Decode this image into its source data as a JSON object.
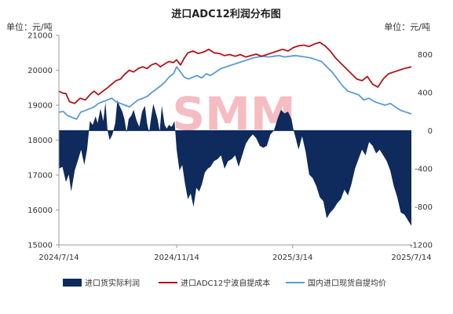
{
  "chart_data": {
    "type": "line",
    "title": "进口ADC12利润分布图",
    "left_unit": "单位：元/吨",
    "right_unit": "单位：元/吨",
    "watermark": "SMM",
    "left_axis": {
      "min": 15000,
      "max": 21000,
      "ticks": [
        15000,
        16000,
        17000,
        18000,
        19000,
        20000,
        21000
      ]
    },
    "right_axis": {
      "min": -1200,
      "max": 1000,
      "ticks": [
        -1200,
        -800,
        -400,
        0,
        400,
        800
      ]
    },
    "x_axis": {
      "start": "2024/7/14",
      "end": "2025/7/14",
      "tick_labels": [
        "2024/7/14",
        "2024/11/14",
        "2025/3/14",
        "2025/7/14"
      ],
      "tick_positions": [
        0,
        0.3342,
        0.663,
        1.0
      ]
    },
    "colors": {
      "profit": "#0f2a5c",
      "cost": "#b0141c",
      "price": "#5a9bd5"
    },
    "series": [
      {
        "name": "进口货实际利润",
        "axis": "right",
        "kind": "area",
        "points": [
          [
            0.0,
            -400
          ],
          [
            0.01,
            -380
          ],
          [
            0.02,
            -540
          ],
          [
            0.028,
            -460
          ],
          [
            0.035,
            -640
          ],
          [
            0.045,
            -420
          ],
          [
            0.055,
            -300
          ],
          [
            0.063,
            -200
          ],
          [
            0.072,
            -360
          ],
          [
            0.08,
            -200
          ],
          [
            0.088,
            100
          ],
          [
            0.096,
            60
          ],
          [
            0.104,
            150
          ],
          [
            0.11,
            80
          ],
          [
            0.118,
            230
          ],
          [
            0.126,
            100
          ],
          [
            0.132,
            300
          ],
          [
            0.138,
            0
          ],
          [
            0.144,
            -100
          ],
          [
            0.152,
            -40
          ],
          [
            0.16,
            80
          ],
          [
            0.166,
            320
          ],
          [
            0.172,
            260
          ],
          [
            0.18,
            200
          ],
          [
            0.186,
            120
          ],
          [
            0.192,
            -20
          ],
          [
            0.198,
            120
          ],
          [
            0.206,
            160
          ],
          [
            0.212,
            220
          ],
          [
            0.22,
            110
          ],
          [
            0.228,
            40
          ],
          [
            0.236,
            200
          ],
          [
            0.244,
            260
          ],
          [
            0.25,
            80
          ],
          [
            0.256,
            -20
          ],
          [
            0.262,
            140
          ],
          [
            0.268,
            280
          ],
          [
            0.274,
            200
          ],
          [
            0.28,
            120
          ],
          [
            0.286,
            -10
          ],
          [
            0.292,
            260
          ],
          [
            0.3,
            60
          ],
          [
            0.306,
            20
          ],
          [
            0.312,
            60
          ],
          [
            0.32,
            40
          ],
          [
            0.328,
            100
          ],
          [
            0.334,
            -200
          ],
          [
            0.342,
            -420
          ],
          [
            0.35,
            -360
          ],
          [
            0.358,
            -560
          ],
          [
            0.366,
            -720
          ],
          [
            0.374,
            -660
          ],
          [
            0.382,
            -800
          ],
          [
            0.39,
            -600
          ],
          [
            0.398,
            -640
          ],
          [
            0.406,
            -560
          ],
          [
            0.414,
            -440
          ],
          [
            0.422,
            -400
          ],
          [
            0.43,
            -380
          ],
          [
            0.44,
            -320
          ],
          [
            0.45,
            -300
          ],
          [
            0.46,
            -260
          ],
          [
            0.47,
            -400
          ],
          [
            0.48,
            -320
          ],
          [
            0.49,
            -300
          ],
          [
            0.5,
            -260
          ],
          [
            0.51,
            -380
          ],
          [
            0.52,
            -260
          ],
          [
            0.53,
            -140
          ],
          [
            0.54,
            -80
          ],
          [
            0.55,
            -40
          ],
          [
            0.56,
            -80
          ],
          [
            0.57,
            -160
          ],
          [
            0.58,
            -180
          ],
          [
            0.59,
            -160
          ],
          [
            0.6,
            -40
          ],
          [
            0.61,
            0
          ],
          [
            0.62,
            120
          ],
          [
            0.63,
            220
          ],
          [
            0.64,
            180
          ],
          [
            0.65,
            200
          ],
          [
            0.66,
            120
          ],
          [
            0.666,
            0
          ],
          [
            0.672,
            -80
          ],
          [
            0.68,
            -200
          ],
          [
            0.69,
            -60
          ],
          [
            0.7,
            -220
          ],
          [
            0.71,
            -460
          ],
          [
            0.72,
            -500
          ],
          [
            0.73,
            -580
          ],
          [
            0.74,
            -700
          ],
          [
            0.75,
            -740
          ],
          [
            0.76,
            -920
          ],
          [
            0.77,
            -860
          ],
          [
            0.78,
            -820
          ],
          [
            0.79,
            -760
          ],
          [
            0.8,
            -720
          ],
          [
            0.81,
            -620
          ],
          [
            0.82,
            -680
          ],
          [
            0.83,
            -560
          ],
          [
            0.84,
            -400
          ],
          [
            0.85,
            -300
          ],
          [
            0.86,
            -200
          ],
          [
            0.87,
            -260
          ],
          [
            0.88,
            -120
          ],
          [
            0.89,
            -160
          ],
          [
            0.9,
            -240
          ],
          [
            0.91,
            -200
          ],
          [
            0.92,
            -260
          ],
          [
            0.93,
            -320
          ],
          [
            0.94,
            -420
          ],
          [
            0.95,
            -580
          ],
          [
            0.96,
            -700
          ],
          [
            0.97,
            -860
          ],
          [
            0.98,
            -880
          ],
          [
            0.99,
            -940
          ],
          [
            1.0,
            -1000
          ]
        ]
      },
      {
        "name": "进口ADC12宁波自提成本",
        "axis": "left",
        "kind": "line",
        "points": [
          [
            0.0,
            19400
          ],
          [
            0.01,
            19350
          ],
          [
            0.02,
            19330
          ],
          [
            0.03,
            19100
          ],
          [
            0.045,
            19050
          ],
          [
            0.06,
            19200
          ],
          [
            0.075,
            19150
          ],
          [
            0.09,
            19320
          ],
          [
            0.1,
            19400
          ],
          [
            0.112,
            19300
          ],
          [
            0.125,
            19400
          ],
          [
            0.138,
            19500
          ],
          [
            0.15,
            19600
          ],
          [
            0.162,
            19700
          ],
          [
            0.175,
            19750
          ],
          [
            0.188,
            19900
          ],
          [
            0.2,
            20000
          ],
          [
            0.212,
            19950
          ],
          [
            0.225,
            20050
          ],
          [
            0.238,
            20100
          ],
          [
            0.25,
            20050
          ],
          [
            0.262,
            20150
          ],
          [
            0.275,
            20200
          ],
          [
            0.288,
            20100
          ],
          [
            0.3,
            20180
          ],
          [
            0.312,
            20250
          ],
          [
            0.325,
            20220
          ],
          [
            0.334,
            20300
          ],
          [
            0.345,
            20150
          ],
          [
            0.356,
            20350
          ],
          [
            0.366,
            20500
          ],
          [
            0.38,
            20550
          ],
          [
            0.395,
            20480
          ],
          [
            0.41,
            20520
          ],
          [
            0.425,
            20600
          ],
          [
            0.44,
            20500
          ],
          [
            0.455,
            20480
          ],
          [
            0.47,
            20420
          ],
          [
            0.485,
            20450
          ],
          [
            0.5,
            20400
          ],
          [
            0.515,
            20450
          ],
          [
            0.53,
            20380
          ],
          [
            0.545,
            20420
          ],
          [
            0.56,
            20460
          ],
          [
            0.575,
            20400
          ],
          [
            0.59,
            20450
          ],
          [
            0.605,
            20500
          ],
          [
            0.62,
            20550
          ],
          [
            0.635,
            20600
          ],
          [
            0.65,
            20550
          ],
          [
            0.665,
            20650
          ],
          [
            0.68,
            20700
          ],
          [
            0.695,
            20720
          ],
          [
            0.71,
            20680
          ],
          [
            0.725,
            20750
          ],
          [
            0.74,
            20800
          ],
          [
            0.755,
            20700
          ],
          [
            0.77,
            20550
          ],
          [
            0.785,
            20350
          ],
          [
            0.8,
            20200
          ],
          [
            0.815,
            20050
          ],
          [
            0.83,
            19900
          ],
          [
            0.845,
            19750
          ],
          [
            0.86,
            19700
          ],
          [
            0.875,
            19820
          ],
          [
            0.89,
            19600
          ],
          [
            0.905,
            19520
          ],
          [
            0.92,
            19750
          ],
          [
            0.935,
            19900
          ],
          [
            0.95,
            19950
          ],
          [
            0.965,
            20000
          ],
          [
            0.98,
            20050
          ],
          [
            1.0,
            20100
          ]
        ]
      },
      {
        "name": "国内进口现货自提均价",
        "axis": "left",
        "kind": "line",
        "points": [
          [
            0.0,
            18800
          ],
          [
            0.012,
            18820
          ],
          [
            0.025,
            18700
          ],
          [
            0.038,
            18650
          ],
          [
            0.05,
            18600
          ],
          [
            0.062,
            18800
          ],
          [
            0.075,
            18850
          ],
          [
            0.088,
            18900
          ],
          [
            0.1,
            18950
          ],
          [
            0.112,
            19050
          ],
          [
            0.125,
            19100
          ],
          [
            0.138,
            19150
          ],
          [
            0.15,
            19200
          ],
          [
            0.162,
            19100
          ],
          [
            0.175,
            19050
          ],
          [
            0.188,
            19000
          ],
          [
            0.2,
            18950
          ],
          [
            0.212,
            19050
          ],
          [
            0.225,
            19150
          ],
          [
            0.238,
            19200
          ],
          [
            0.25,
            19250
          ],
          [
            0.262,
            19350
          ],
          [
            0.275,
            19450
          ],
          [
            0.288,
            19550
          ],
          [
            0.3,
            19650
          ],
          [
            0.312,
            19800
          ],
          [
            0.325,
            19900
          ],
          [
            0.334,
            20100
          ],
          [
            0.345,
            19950
          ],
          [
            0.356,
            19800
          ],
          [
            0.368,
            19750
          ],
          [
            0.38,
            19800
          ],
          [
            0.392,
            19850
          ],
          [
            0.405,
            19780
          ],
          [
            0.418,
            19900
          ],
          [
            0.43,
            19850
          ],
          [
            0.445,
            19950
          ],
          [
            0.46,
            20050
          ],
          [
            0.475,
            20100
          ],
          [
            0.49,
            20150
          ],
          [
            0.505,
            20200
          ],
          [
            0.52,
            20250
          ],
          [
            0.535,
            20300
          ],
          [
            0.55,
            20350
          ],
          [
            0.565,
            20380
          ],
          [
            0.58,
            20400
          ],
          [
            0.595,
            20380
          ],
          [
            0.61,
            20400
          ],
          [
            0.625,
            20420
          ],
          [
            0.64,
            20380
          ],
          [
            0.655,
            20400
          ],
          [
            0.67,
            20420
          ],
          [
            0.685,
            20400
          ],
          [
            0.7,
            20380
          ],
          [
            0.715,
            20350
          ],
          [
            0.73,
            20300
          ],
          [
            0.745,
            20250
          ],
          [
            0.76,
            20100
          ],
          [
            0.775,
            19950
          ],
          [
            0.79,
            19750
          ],
          [
            0.805,
            19550
          ],
          [
            0.82,
            19400
          ],
          [
            0.835,
            19350
          ],
          [
            0.85,
            19300
          ],
          [
            0.865,
            19150
          ],
          [
            0.88,
            19200
          ],
          [
            0.895,
            19100
          ],
          [
            0.91,
            19050
          ],
          [
            0.925,
            19000
          ],
          [
            0.94,
            19050
          ],
          [
            0.955,
            18950
          ],
          [
            0.97,
            18850
          ],
          [
            0.985,
            18800
          ],
          [
            1.0,
            18750
          ]
        ]
      }
    ],
    "legend": {
      "position": "bottom"
    }
  }
}
